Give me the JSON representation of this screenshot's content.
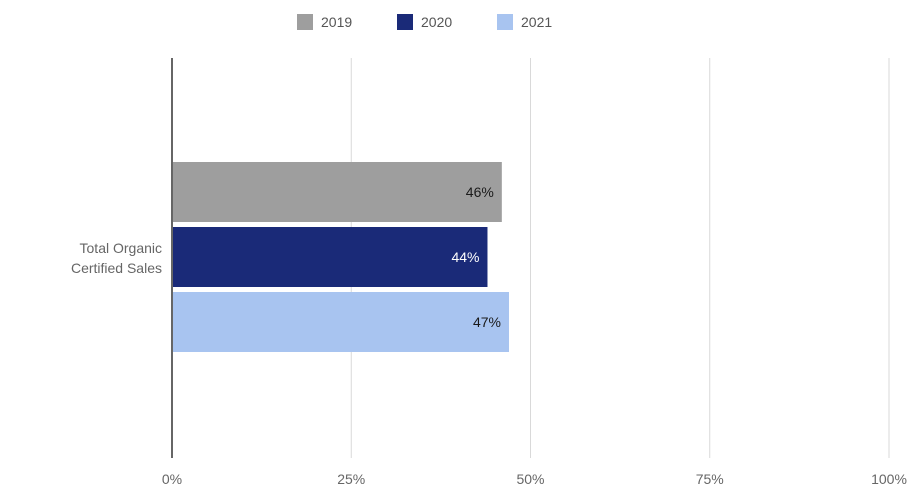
{
  "chart_data": {
    "type": "bar",
    "orientation": "horizontal",
    "categories": [
      "Total Organic Certified Sales"
    ],
    "category_label_lines": [
      [
        "Total Organic",
        "Certified Sales"
      ]
    ],
    "series": [
      {
        "name": "2019",
        "values": [
          46
        ],
        "labels": [
          "46%"
        ],
        "color": "#9e9e9e",
        "label_color": "#1a1a1a"
      },
      {
        "name": "2020",
        "values": [
          44
        ],
        "labels": [
          "44%"
        ],
        "color": "#1a2a78",
        "label_color": "#ffffff"
      },
      {
        "name": "2021",
        "values": [
          47
        ],
        "labels": [
          "47%"
        ],
        "color": "#a8c4f0",
        "label_color": "#1a1a1a"
      }
    ],
    "xlim": [
      0,
      100
    ],
    "x_ticks": [
      0,
      25,
      50,
      75,
      100
    ],
    "x_tick_labels": [
      "0%",
      "25%",
      "50%",
      "75%",
      "100%"
    ],
    "grid": true,
    "legend_position": "top-center",
    "title": "",
    "xlabel": "",
    "ylabel": ""
  }
}
